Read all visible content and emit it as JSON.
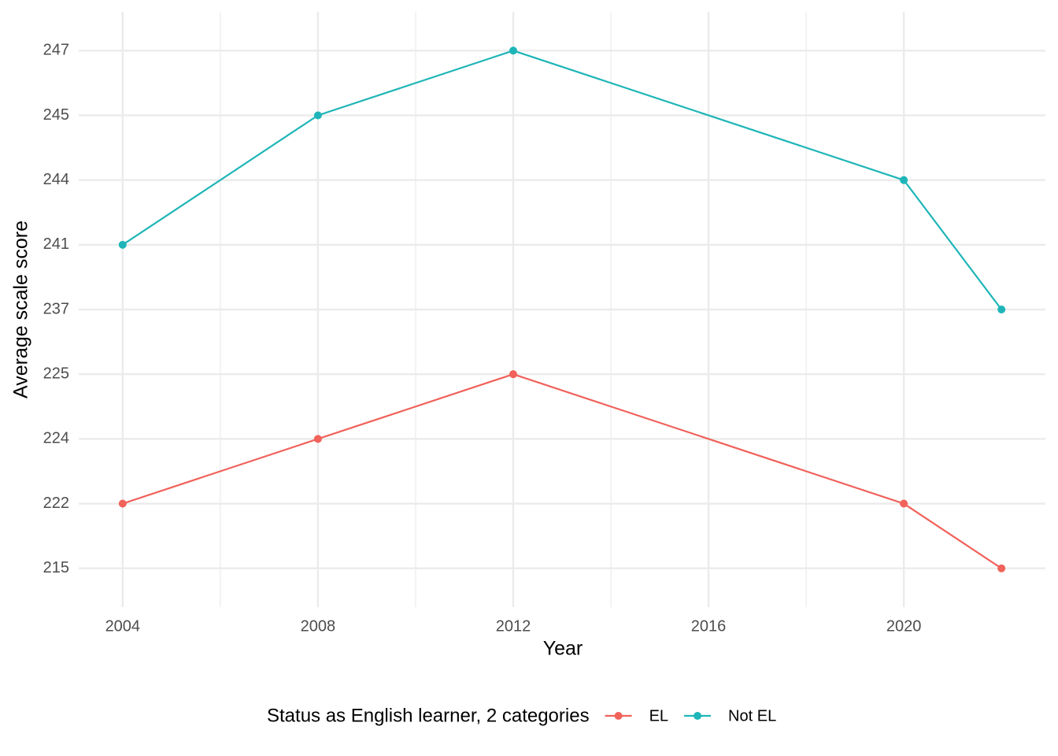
{
  "chart_data": {
    "type": "line",
    "x_label": "Year",
    "y_label": "Average scale score",
    "x": [
      2004,
      2008,
      2012,
      2020,
      2022
    ],
    "xlim": [
      2003.1,
      2022.9
    ],
    "xticks": [
      2004,
      2008,
      2012,
      2016,
      2020
    ],
    "y_scale": "discrete",
    "yticks": [
      215,
      222,
      224,
      225,
      237,
      241,
      244,
      245,
      247
    ],
    "grid": true,
    "legend_title": "Status as English learner, 2 categories",
    "legend_position": "bottom",
    "series": [
      {
        "name": "EL",
        "color": "#f0625a",
        "values": [
          222,
          224,
          225,
          222,
          215
        ]
      },
      {
        "name": "Not EL",
        "color": "#1fb5b8",
        "values": [
          241,
          245,
          247,
          244,
          237
        ]
      }
    ]
  }
}
